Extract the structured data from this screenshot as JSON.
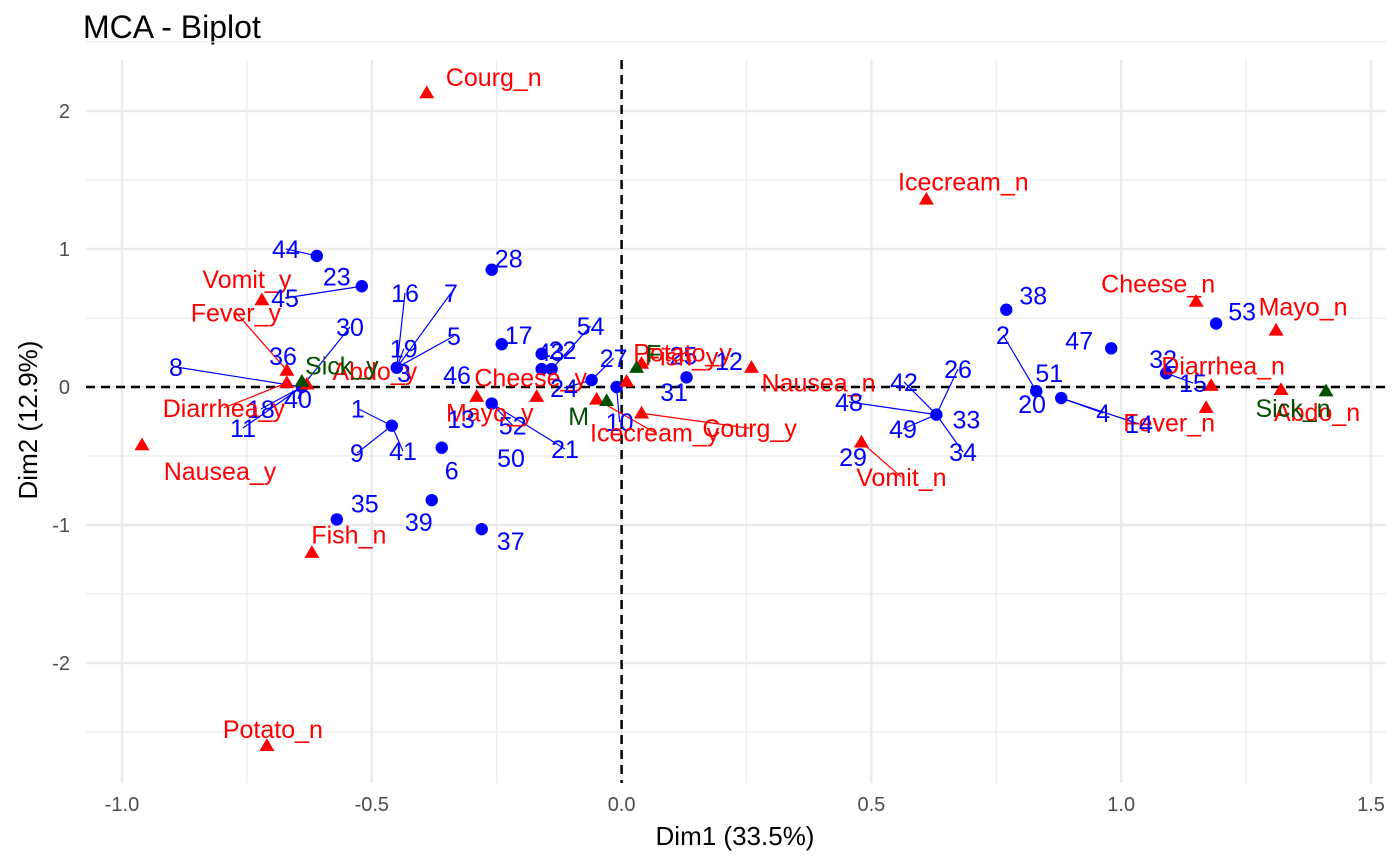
{
  "chart_data": {
    "type": "scatter",
    "title": "MCA - Biplot",
    "xlabel": "Dim1 (33.5%)",
    "ylabel": "Dim2 (12.9%)",
    "xlim": [
      -1.0,
      1.5
    ],
    "ylim": [
      -2.5,
      2.0
    ],
    "xticks": [
      "-1.0",
      "-0.5",
      "0.0",
      "0.5",
      "1.0",
      "1.5"
    ],
    "yticks": [
      "2",
      "1",
      "0",
      "-1",
      "-2"
    ],
    "grid": true,
    "reference_lines": {
      "x": 0,
      "y": 0
    },
    "colors": {
      "individuals": "#0000ff",
      "variables": "#ff0000",
      "supplementary": "#005000",
      "grid": "#ebebeb",
      "reference": "#000000"
    },
    "series": [
      {
        "group": "individuals",
        "marker": "circle",
        "points": [
          {
            "x": -0.61,
            "y": 0.95,
            "label": "44"
          },
          {
            "x": -0.52,
            "y": 0.73,
            "label": "23"
          },
          {
            "x": -0.26,
            "y": 0.85,
            "label": "28"
          },
          {
            "x": -0.45,
            "y": 0.14,
            "label": "19"
          },
          {
            "x": -0.64,
            "y": 0.0,
            "label": "18"
          },
          {
            "x": -0.24,
            "y": 0.31,
            "label": "17"
          },
          {
            "x": -0.16,
            "y": 0.24,
            "label": "22"
          },
          {
            "x": -0.16,
            "y": 0.13,
            "label": "43"
          },
          {
            "x": -0.14,
            "y": 0.13,
            "label": "54"
          },
          {
            "x": -0.06,
            "y": 0.05,
            "label": "27"
          },
          {
            "x": -0.01,
            "y": 0.0,
            "label": "10"
          },
          {
            "x": 0.13,
            "y": 0.07,
            "label": "25"
          },
          {
            "x": -0.26,
            "y": -0.12,
            "label": "52"
          },
          {
            "x": -0.36,
            "y": -0.44,
            "label": "6"
          },
          {
            "x": -0.38,
            "y": -0.82,
            "label": "39"
          },
          {
            "x": -0.57,
            "y": -0.96,
            "label": "35"
          },
          {
            "x": -0.28,
            "y": -1.03,
            "label": "37"
          },
          {
            "x": -0.46,
            "y": -0.28,
            "label": "1"
          },
          {
            "x": 0.63,
            "y": -0.2,
            "label": "33"
          },
          {
            "x": 0.77,
            "y": 0.56,
            "label": "38"
          },
          {
            "x": 0.83,
            "y": -0.03,
            "label": "51"
          },
          {
            "x": 0.88,
            "y": -0.08,
            "label": "4"
          },
          {
            "x": 0.98,
            "y": 0.28,
            "label": "47"
          },
          {
            "x": 1.09,
            "y": 0.1,
            "label": "32"
          },
          {
            "x": 1.19,
            "y": 0.46,
            "label": "53"
          }
        ]
      },
      {
        "group": "variables",
        "marker": "triangle",
        "points": [
          {
            "x": -0.39,
            "y": 2.13,
            "label": "Courg_n"
          },
          {
            "x": 0.61,
            "y": 1.36,
            "label": "Icecream_n"
          },
          {
            "x": -0.72,
            "y": 0.63,
            "label": "Vomit_y"
          },
          {
            "x": -0.67,
            "y": 0.12,
            "label": "Fever_y"
          },
          {
            "x": -0.67,
            "y": 0.03,
            "label": "Diarrhea_y"
          },
          {
            "x": -0.63,
            "y": 0.02,
            "label": "Abdo_y"
          },
          {
            "x": -0.96,
            "y": -0.42,
            "label": "Nausea_y"
          },
          {
            "x": -0.62,
            "y": -1.2,
            "label": "Fish_n"
          },
          {
            "x": -0.71,
            "y": -2.6,
            "label": "Potato_n"
          },
          {
            "x": -0.29,
            "y": -0.07,
            "label": "Mayo_y"
          },
          {
            "x": -0.17,
            "y": -0.07,
            "label": "Cheese_y"
          },
          {
            "x": -0.05,
            "y": -0.09,
            "label": "Icecream_y"
          },
          {
            "x": 0.01,
            "y": 0.04,
            "label": "Potato_y"
          },
          {
            "x": 0.04,
            "y": 0.17,
            "label": "Fish_y"
          },
          {
            "x": 0.04,
            "y": -0.19,
            "label": "Courg_y"
          },
          {
            "x": 0.26,
            "y": 0.14,
            "label": "Nausea_n"
          },
          {
            "x": 0.48,
            "y": -0.4,
            "label": "Vomit_n"
          },
          {
            "x": 1.15,
            "y": 0.62,
            "label": "Cheese_n"
          },
          {
            "x": 1.31,
            "y": 0.41,
            "label": "Mayo_n"
          },
          {
            "x": 1.18,
            "y": 0.01,
            "label": "Diarrhea_n"
          },
          {
            "x": 1.17,
            "y": -0.15,
            "label": "Fever_n"
          },
          {
            "x": 1.32,
            "y": -0.02,
            "label": "Abdo_n"
          }
        ]
      },
      {
        "group": "supplementary",
        "marker": "triangle",
        "points": [
          {
            "x": -0.64,
            "y": 0.04,
            "label": "Sick_y"
          },
          {
            "x": 0.03,
            "y": 0.14,
            "label": "F"
          },
          {
            "x": -0.03,
            "y": -0.1,
            "label": "M"
          },
          {
            "x": 1.41,
            "y": -0.03,
            "label": "Sick_n"
          }
        ]
      }
    ],
    "unplaced_labels": [
      {
        "x": -0.46,
        "y": -0.2,
        "label": "45",
        "group": "individuals"
      },
      {
        "x": -0.44,
        "y": 0.08,
        "label": "16",
        "group": "individuals"
      },
      {
        "x": -0.35,
        "y": 0.09,
        "label": "7",
        "group": "individuals"
      },
      {
        "x": -0.34,
        "y": 0.09,
        "label": "5",
        "group": "individuals"
      },
      {
        "x": -0.56,
        "y": 0.0,
        "label": "30",
        "group": "individuals"
      },
      {
        "x": -0.52,
        "y": 0.0,
        "label": "36",
        "group": "individuals"
      },
      {
        "x": -0.46,
        "y": 0.0,
        "label": "3",
        "group": "individuals"
      },
      {
        "x": -0.82,
        "y": 0.0,
        "label": "8",
        "group": "individuals"
      },
      {
        "x": -0.6,
        "y": -0.05,
        "label": "40",
        "group": "individuals"
      },
      {
        "x": -0.6,
        "y": -0.05,
        "label": "11",
        "group": "individuals"
      },
      {
        "x": -0.3,
        "y": -0.05,
        "label": "46",
        "group": "individuals"
      },
      {
        "x": -0.35,
        "y": -0.32,
        "label": "13",
        "group": "individuals"
      },
      {
        "x": -0.45,
        "y": -0.35,
        "label": "9",
        "group": "individuals"
      },
      {
        "x": -0.44,
        "y": -0.35,
        "label": "41",
        "group": "individuals"
      },
      {
        "x": -0.28,
        "y": -0.3,
        "label": "50",
        "group": "individuals"
      },
      {
        "x": -0.15,
        "y": -0.2,
        "label": "21",
        "group": "individuals"
      },
      {
        "x": -0.1,
        "y": -0.05,
        "label": "24",
        "group": "individuals"
      },
      {
        "x": 0.05,
        "y": 0.07,
        "label": "31",
        "group": "individuals"
      },
      {
        "x": 0.17,
        "y": 0.1,
        "label": "12",
        "group": "individuals"
      },
      {
        "x": 0.58,
        "y": -0.2,
        "label": "42",
        "group": "individuals"
      },
      {
        "x": 0.57,
        "y": -0.2,
        "label": "48",
        "group": "individuals"
      },
      {
        "x": 0.58,
        "y": -0.2,
        "label": "49",
        "group": "individuals"
      },
      {
        "x": 0.52,
        "y": -0.4,
        "label": "29",
        "group": "individuals"
      },
      {
        "x": 0.67,
        "y": -0.2,
        "label": "26",
        "group": "individuals"
      },
      {
        "x": 0.67,
        "y": -0.2,
        "label": "34",
        "group": "individuals"
      },
      {
        "x": 0.8,
        "y": -0.03,
        "label": "2",
        "group": "individuals"
      },
      {
        "x": 0.86,
        "y": -0.05,
        "label": "20",
        "group": "individuals"
      },
      {
        "x": 1.02,
        "y": -0.2,
        "label": "14",
        "group": "individuals"
      },
      {
        "x": 1.14,
        "y": -0.05,
        "label": "15",
        "group": "individuals"
      }
    ]
  }
}
